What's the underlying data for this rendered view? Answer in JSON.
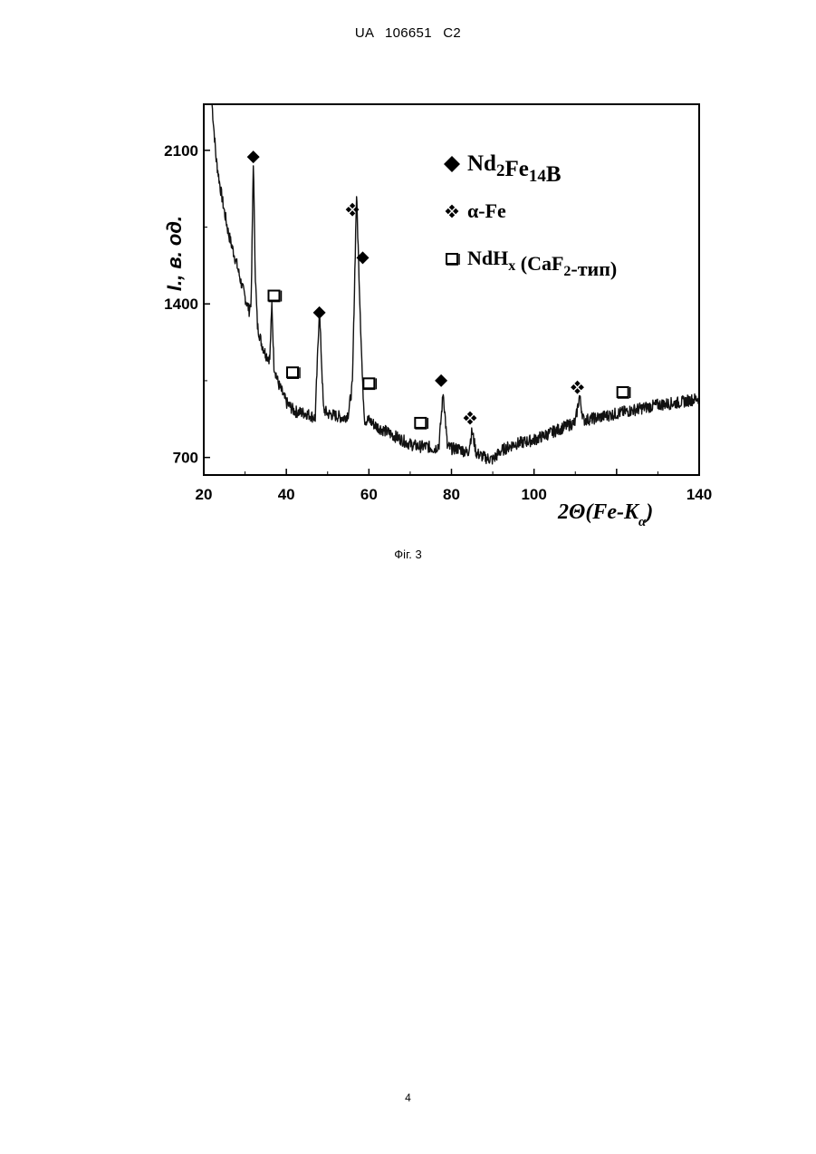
{
  "header": {
    "patent_id": "UA   106651   C2"
  },
  "caption": "Фіг. 3",
  "page_number": "4",
  "chart_data": {
    "type": "line",
    "title": "",
    "ylabel": "I., в. од.",
    "xlabel": "2Θ(Fe-Kα)",
    "xlim": [
      20,
      140
    ],
    "ylim": [
      620,
      2310
    ],
    "x_ticks": [
      20,
      40,
      60,
      80,
      100,
      120,
      140
    ],
    "x_tick_labels": [
      "20",
      "40",
      "60",
      "80",
      "100",
      "",
      "140"
    ],
    "y_ticks": [
      700,
      1400,
      2100
    ],
    "y_tick_labels": [
      "700",
      "1400",
      "2100"
    ],
    "grid": false,
    "legend_position": "top-right",
    "legend": [
      {
        "marker": "filled-diamond",
        "label": "Nd2Fe14B"
      },
      {
        "marker": "four-diamond-cluster",
        "label": "α-Fe"
      },
      {
        "marker": "open-square",
        "label": "NdHx (CaF2-тип)"
      }
    ],
    "series": [
      {
        "x": [
          22,
          23,
          24,
          25,
          26,
          27,
          28,
          29,
          30,
          31,
          31.5,
          32,
          32.5,
          33,
          34,
          35,
          36,
          36.5,
          37,
          38,
          40,
          42,
          45,
          47,
          48,
          49,
          50,
          52,
          54,
          55,
          56,
          57,
          58,
          58.5,
          59,
          60,
          62,
          65,
          68,
          70,
          72,
          74,
          76,
          77,
          78,
          79,
          80,
          82,
          84,
          85,
          86,
          88,
          90,
          92,
          95,
          100,
          105,
          110,
          111,
          112,
          115,
          120,
          125,
          130,
          135,
          140
        ],
        "y": [
          2310,
          2060,
          1930,
          1820,
          1720,
          1650,
          1580,
          1500,
          1430,
          1370,
          1420,
          2050,
          1520,
          1300,
          1220,
          1170,
          1150,
          1400,
          1120,
          1040,
          950,
          910,
          900,
          880,
          1380,
          920,
          900,
          890,
          880,
          900,
          1030,
          1900,
          1300,
          1020,
          870,
          870,
          840,
          810,
          780,
          760,
          750,
          750,
          740,
          760,
          1000,
          750,
          740,
          740,
          720,
          820,
          720,
          700,
          690,
          730,
          760,
          780,
          820,
          860,
          980,
          870,
          880,
          900,
          920,
          940,
          950,
          970
        ]
      }
    ],
    "peak_markers": [
      {
        "phase": "Nd2Fe14B",
        "marker": "filled-diamond",
        "x": 32,
        "y": 2070
      },
      {
        "phase": "Nd2Fe14B",
        "marker": "filled-diamond",
        "x": 48,
        "y": 1360
      },
      {
        "phase": "Nd2Fe14B",
        "marker": "filled-diamond",
        "x": 58.5,
        "y": 1610
      },
      {
        "phase": "Nd2Fe14B",
        "marker": "filled-diamond",
        "x": 77.5,
        "y": 1050
      },
      {
        "phase": "α-Fe",
        "marker": "four-diamond-cluster",
        "x": 56,
        "y": 1830
      },
      {
        "phase": "α-Fe",
        "marker": "four-diamond-cluster",
        "x": 84.5,
        "y": 880
      },
      {
        "phase": "α-Fe",
        "marker": "four-diamond-cluster",
        "x": 110.5,
        "y": 1020
      },
      {
        "phase": "NdHx (CaF2-тип)",
        "marker": "open-square",
        "x": 37,
        "y": 1440
      },
      {
        "phase": "NdHx (CaF2-тип)",
        "marker": "open-square",
        "x": 41.5,
        "y": 1090
      },
      {
        "phase": "NdHx (CaF2-тип)",
        "marker": "open-square",
        "x": 60,
        "y": 1040
      },
      {
        "phase": "NdHx (CaF2-тип)",
        "marker": "open-square",
        "x": 72.5,
        "y": 860
      },
      {
        "phase": "NdHx (CaF2-тип)",
        "marker": "open-square",
        "x": 121.5,
        "y": 1000
      }
    ]
  }
}
